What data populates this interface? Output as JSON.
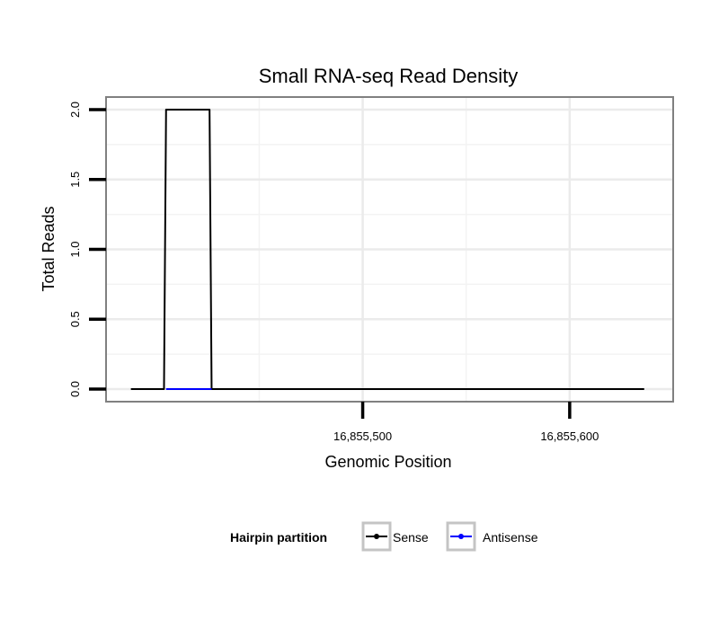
{
  "chart_data": {
    "type": "line",
    "title": "Small RNA-seq Read Density",
    "xlabel": "Genomic Position",
    "ylabel": "Total Reads",
    "xlim": [
      16855376,
      16855650
    ],
    "ylim": [
      -0.09,
      2.09
    ],
    "x_ticks": [
      {
        "value": 16855500,
        "label": "16,855,500"
      },
      {
        "value": 16855600,
        "label": "16,855,600"
      }
    ],
    "x_minor_grid": [
      16855450,
      16855550
    ],
    "x_major_grid": [
      16855500,
      16855600
    ],
    "y_ticks": [
      {
        "value": 0,
        "label": "0.0"
      },
      {
        "value": 0.5,
        "label": "0.5"
      },
      {
        "value": 1,
        "label": "1.0"
      },
      {
        "value": 1.5,
        "label": "1.5"
      },
      {
        "value": 2,
        "label": "2.0"
      }
    ],
    "y_minor_grid": [
      0.25,
      0.75,
      1.25,
      1.75
    ],
    "grid": true,
    "legend": {
      "title": "Hairpin partition",
      "position": "bottom"
    },
    "series": [
      {
        "name": "Sense",
        "color": "#000000",
        "x": [
          16855388,
          16855404,
          16855405,
          16855426,
          16855427,
          16855636
        ],
        "y": [
          0,
          0,
          2,
          2,
          0,
          0
        ]
      },
      {
        "name": "Antisense",
        "color": "#0000ff",
        "x": [
          16855405,
          16855427
        ],
        "y": [
          0,
          0
        ]
      }
    ]
  }
}
